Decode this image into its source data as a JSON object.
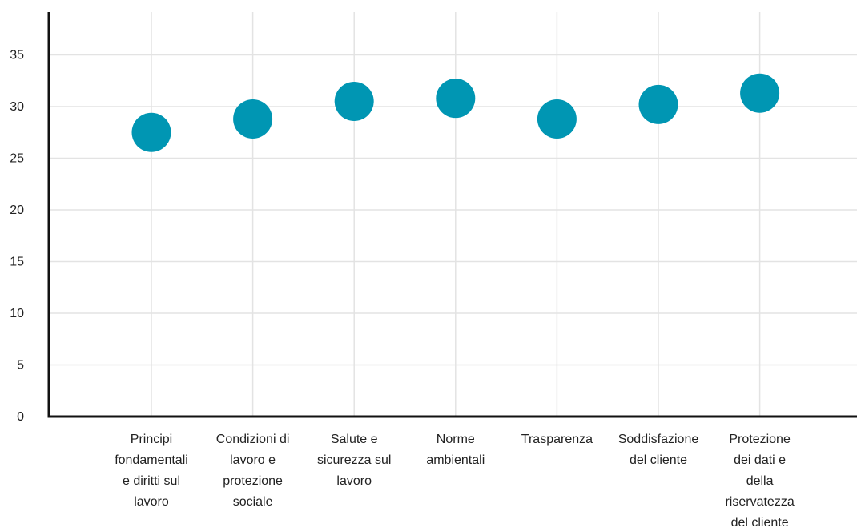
{
  "chart_data": {
    "type": "scatter",
    "title": "",
    "xlabel": "",
    "ylabel": "",
    "ylim": [
      0,
      37.5
    ],
    "yticks": [
      0,
      5,
      10,
      15,
      20,
      25,
      30,
      35
    ],
    "grid": true,
    "legend": "none",
    "marker_color": "#0096b3",
    "categories": [
      [
        "Principi",
        "fondamentali",
        "e diritti sul",
        "lavoro"
      ],
      [
        "Condizioni di",
        "lavoro e",
        "protezione",
        "sociale"
      ],
      [
        "Salute e",
        "sicurezza sul",
        "lavoro"
      ],
      [
        "Norme",
        "ambientali"
      ],
      [
        "Trasparenza"
      ],
      [
        "Soddisfazione",
        "del cliente"
      ],
      [
        "Protezione",
        "dei dati e",
        "della",
        "riservatezza",
        "del cliente"
      ]
    ],
    "values": [
      27.5,
      28.8,
      30.5,
      30.8,
      28.8,
      30.2,
      31.3
    ]
  }
}
